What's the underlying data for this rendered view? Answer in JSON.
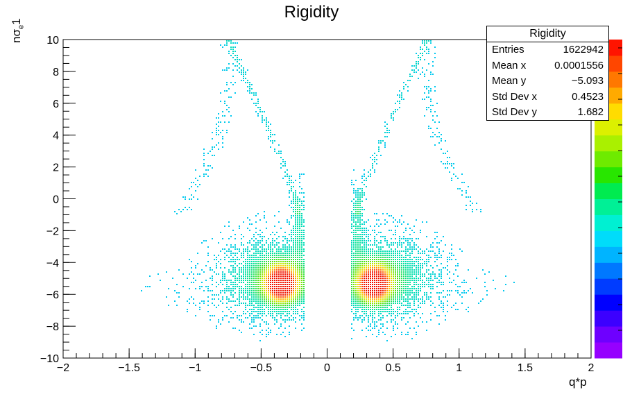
{
  "chart_data": {
    "type": "heatmap",
    "title": "Rigidity",
    "xlabel": "q*p",
    "ylabel": "nσe1",
    "xlim": [
      -2,
      2
    ],
    "ylim": [
      -10,
      10
    ],
    "x_ticks": [
      "−2",
      "−1.5",
      "−1",
      "−0.5",
      "0",
      "0.5",
      "1",
      "1.5",
      "2"
    ],
    "y_ticks": [
      "10",
      "8",
      "6",
      "4",
      "2",
      "0",
      "−2",
      "−4",
      "−6",
      "−8",
      "−10"
    ],
    "x_tick_values": [
      -2,
      -1.5,
      -1,
      -0.5,
      0,
      0.5,
      1,
      1.5,
      2
    ],
    "y_tick_values": [
      10,
      8,
      6,
      4,
      2,
      0,
      -2,
      -4,
      -6,
      -8,
      -10
    ],
    "colorbar": "rainbow (violet → blue → cyan → green → yellow → red)",
    "density_peaks": [
      {
        "x": -0.35,
        "y": -5.3
      },
      {
        "x": 0.35,
        "y": -5.3
      }
    ],
    "stats_box": {
      "title": "Rigidity",
      "rows": [
        {
          "label": "Entries",
          "value": "1622942"
        },
        {
          "label": "Mean x",
          "value": "0.0001556"
        },
        {
          "label": "Mean y",
          "value": "−5.093"
        },
        {
          "label": "Std Dev x",
          "value": "0.4523"
        },
        {
          "label": "Std Dev y",
          "value": "1.682"
        }
      ]
    }
  }
}
